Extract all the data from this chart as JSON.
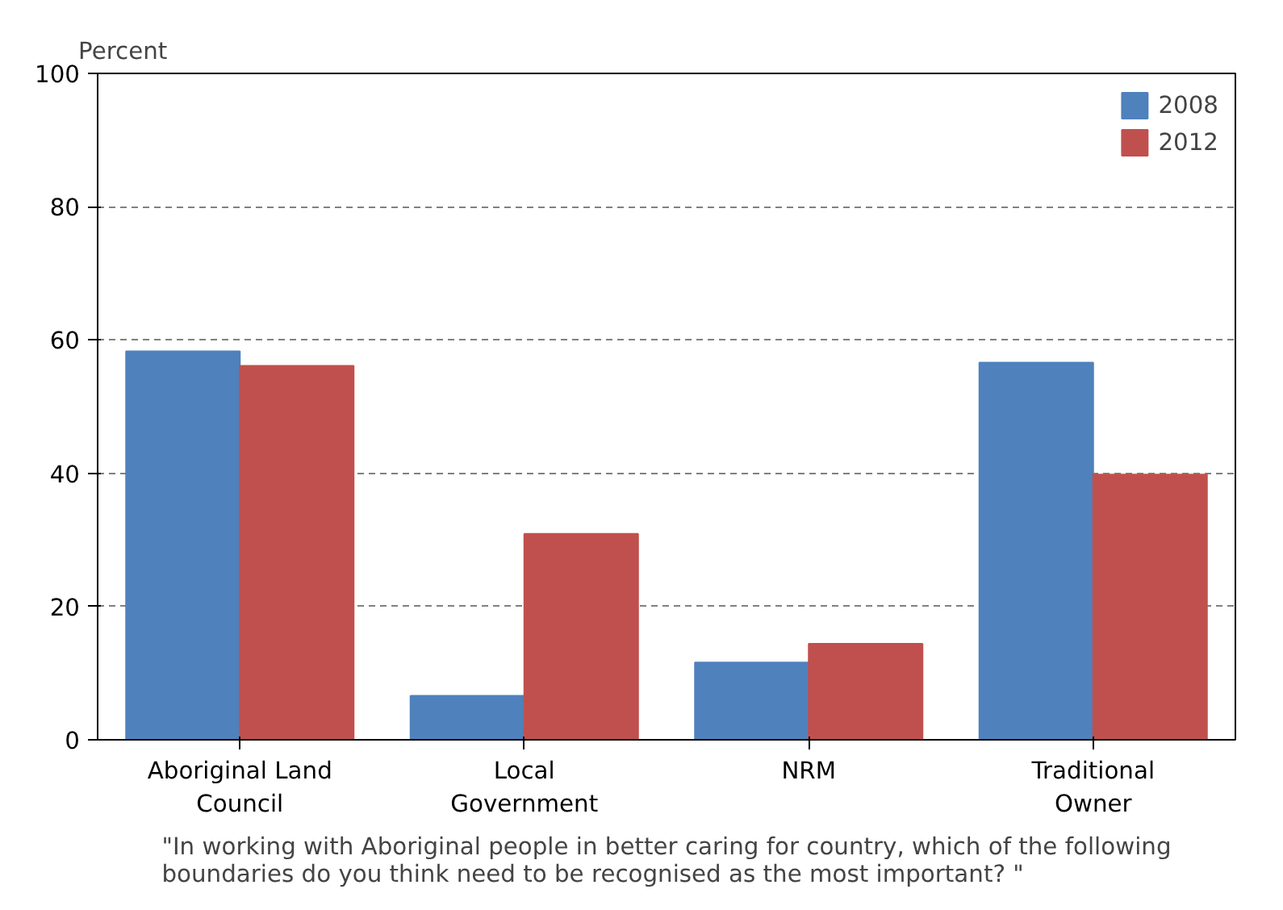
{
  "chart_data": {
    "type": "bar",
    "ylabel": "Percent",
    "categories": [
      "Aboriginal Land Council",
      "Local Government",
      "NRM",
      "Traditional Owner"
    ],
    "series": [
      {
        "name": "2008",
        "color": "#4f81bd",
        "values": [
          58.3,
          6.6,
          11.6,
          56.6
        ]
      },
      {
        "name": "2012",
        "color": "#c0504d",
        "values": [
          56.1,
          30.9,
          14.4,
          39.8
        ]
      }
    ],
    "ylim": [
      0,
      100
    ],
    "yticks": [
      0,
      20,
      40,
      60,
      80,
      100
    ],
    "grid": "y",
    "legend": "top right",
    "annotations": [
      "\"In working with Aboriginal people in better caring for country, which of the following boundaries do you think need to be recognised as the most important? \""
    ]
  }
}
